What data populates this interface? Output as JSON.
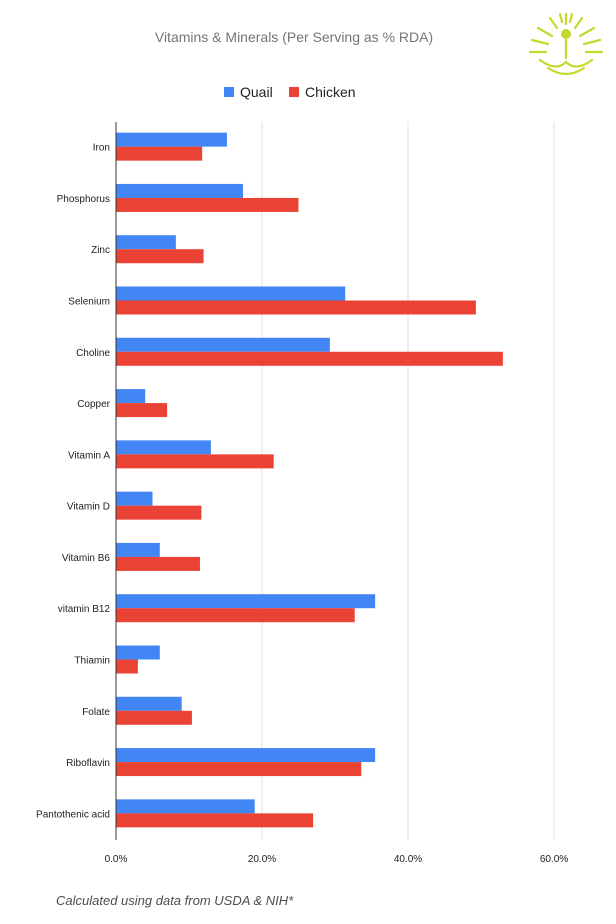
{
  "chart_data": {
    "type": "bar",
    "orientation": "horizontal",
    "title": "Vitamins & Minerals (Per Serving as % RDA)",
    "categories": [
      "Iron",
      "Phosphorus",
      "Zinc",
      "Selenium",
      "Choline",
      "Copper",
      "Vitamin A",
      "Vitamin D",
      "Vitamin B6",
      "vitamin B12",
      "Thiamin",
      "Folate",
      "Riboflavin",
      "Pantothenic acid"
    ],
    "series": [
      {
        "name": "Quail",
        "color": "#4285f4",
        "values": [
          15.2,
          17.4,
          8.2,
          31.4,
          29.3,
          4.0,
          13.0,
          5.0,
          6.0,
          35.5,
          6.0,
          9.0,
          35.5,
          19.0
        ]
      },
      {
        "name": "Chicken",
        "color": "#ea4335",
        "values": [
          11.8,
          25.0,
          12.0,
          49.3,
          53.0,
          7.0,
          21.6,
          11.7,
          11.5,
          32.7,
          3.0,
          10.4,
          33.6,
          27.0
        ]
      }
    ],
    "xlim": [
      0,
      60
    ],
    "xticks": [
      "0.0%",
      "20.0%",
      "40.0%",
      "60.0%"
    ],
    "xtick_values": [
      0,
      20,
      40,
      60
    ],
    "grid": true,
    "legend_position": "top-center"
  },
  "footnote": "Calculated using data from USDA & NIH*",
  "logo_icon": "lotus-person-logo-icon",
  "colors": {
    "quail": "#4285f4",
    "chicken": "#ea4335",
    "logo": "#c5d92d",
    "grid": "#e0e0e0"
  }
}
